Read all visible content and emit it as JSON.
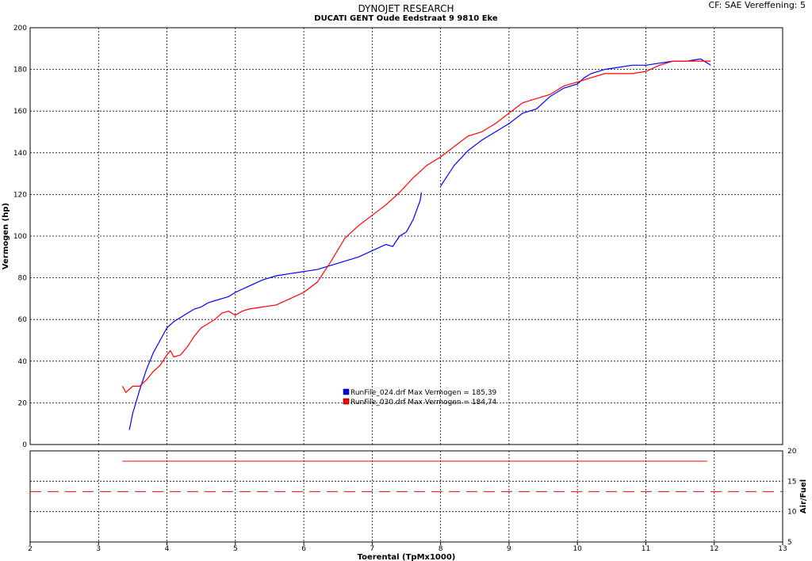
{
  "header": {
    "title": "DYNOJET RESEARCH",
    "subtitle": "DUCATI GENT Oude Eedstraat 9 9810 Eke",
    "cf_info": "CF: SAE  Vereffening: 5"
  },
  "chart_data": [
    {
      "type": "line",
      "xlabel": "",
      "ylabel": "Vermogen (hp)",
      "xlim": [
        2,
        13
      ],
      "ylim": [
        0,
        200
      ],
      "x_ticks": [
        2,
        3,
        4,
        5,
        6,
        7,
        8,
        9,
        10,
        11,
        12,
        13
      ],
      "y_ticks": [
        0,
        20,
        40,
        60,
        80,
        100,
        120,
        140,
        160,
        180,
        200
      ],
      "grid": true,
      "legend_position": "center",
      "series": [
        {
          "name": "RunFile_024.drf Max Vermogen = 185,39",
          "color": "#0000ff",
          "x": [
            3.45,
            3.5,
            3.6,
            3.7,
            3.8,
            3.9,
            4.0,
            4.1,
            4.2,
            4.3,
            4.4,
            4.5,
            4.6,
            4.7,
            4.8,
            4.9,
            5.0,
            5.2,
            5.4,
            5.6,
            5.8,
            6.0,
            6.2,
            6.4,
            6.6,
            6.8,
            7.0,
            7.2,
            7.3,
            7.4,
            7.5,
            7.6,
            7.7,
            7.72,
            null,
            8.0,
            8.2,
            8.4,
            8.6,
            8.8,
            9.0,
            9.2,
            9.4,
            9.6,
            9.8,
            10.0,
            10.1,
            10.2,
            10.4,
            10.6,
            10.8,
            11.0,
            11.2,
            11.4,
            11.6,
            11.8,
            11.95
          ],
          "y": [
            7,
            15,
            26,
            36,
            44,
            50,
            56,
            59,
            61,
            63,
            65,
            66,
            68,
            69,
            70,
            71,
            73,
            76,
            79,
            81,
            82,
            83,
            84,
            86,
            88,
            90,
            93,
            96,
            95,
            100,
            102,
            108,
            117,
            121,
            null,
            124,
            134,
            141,
            146,
            150,
            154,
            159,
            161,
            167,
            171,
            173,
            176,
            178,
            180,
            181,
            182,
            182,
            183,
            184,
            184,
            185,
            182
          ]
        },
        {
          "name": "RunFile_030.drf Max Vermogen = 184,74",
          "color": "#ff0000",
          "x": [
            3.35,
            3.4,
            3.5,
            3.6,
            3.7,
            3.8,
            3.9,
            4.0,
            4.05,
            4.1,
            4.2,
            4.3,
            4.4,
            4.5,
            4.6,
            4.7,
            4.8,
            4.9,
            5.0,
            5.1,
            5.2,
            5.4,
            5.6,
            5.8,
            6.0,
            6.2,
            6.4,
            6.6,
            6.8,
            7.0,
            7.2,
            7.4,
            7.6,
            7.8,
            8.0,
            8.2,
            8.4,
            8.6,
            8.8,
            9.0,
            9.2,
            9.4,
            9.6,
            9.8,
            10.0,
            10.2,
            10.4,
            10.6,
            10.8,
            11.0,
            11.2,
            11.4,
            11.6,
            11.8,
            11.95
          ],
          "y": [
            28,
            25,
            28,
            28,
            31,
            35,
            38,
            43,
            45,
            42,
            43,
            47,
            52,
            56,
            58,
            60,
            63,
            64,
            62,
            64,
            65,
            66,
            67,
            70,
            73,
            78,
            88,
            99,
            105,
            110,
            115,
            121,
            128,
            134,
            138,
            143,
            148,
            150,
            154,
            159,
            164,
            166,
            168,
            172,
            174,
            176,
            178,
            178,
            178,
            179,
            182,
            184,
            184,
            184,
            184
          ]
        }
      ]
    },
    {
      "type": "line",
      "xlabel": "Toerental (TpMx1000)",
      "ylabel": "Air/Fuel",
      "xlim": [
        2,
        13
      ],
      "ylim": [
        5,
        20
      ],
      "x_ticks": [
        2,
        3,
        4,
        5,
        6,
        7,
        8,
        9,
        10,
        11,
        12,
        13
      ],
      "y_ticks": [
        5,
        10,
        15,
        20
      ],
      "grid": true,
      "series": [
        {
          "color": "#ff0000",
          "style": "solid",
          "x": [
            3.35,
            11.9
          ],
          "y": [
            18.3,
            18.3
          ]
        },
        {
          "color": "#ff0000",
          "style": "dashed",
          "x": [
            2,
            13
          ],
          "y": [
            13.3,
            13.3
          ]
        }
      ]
    }
  ]
}
